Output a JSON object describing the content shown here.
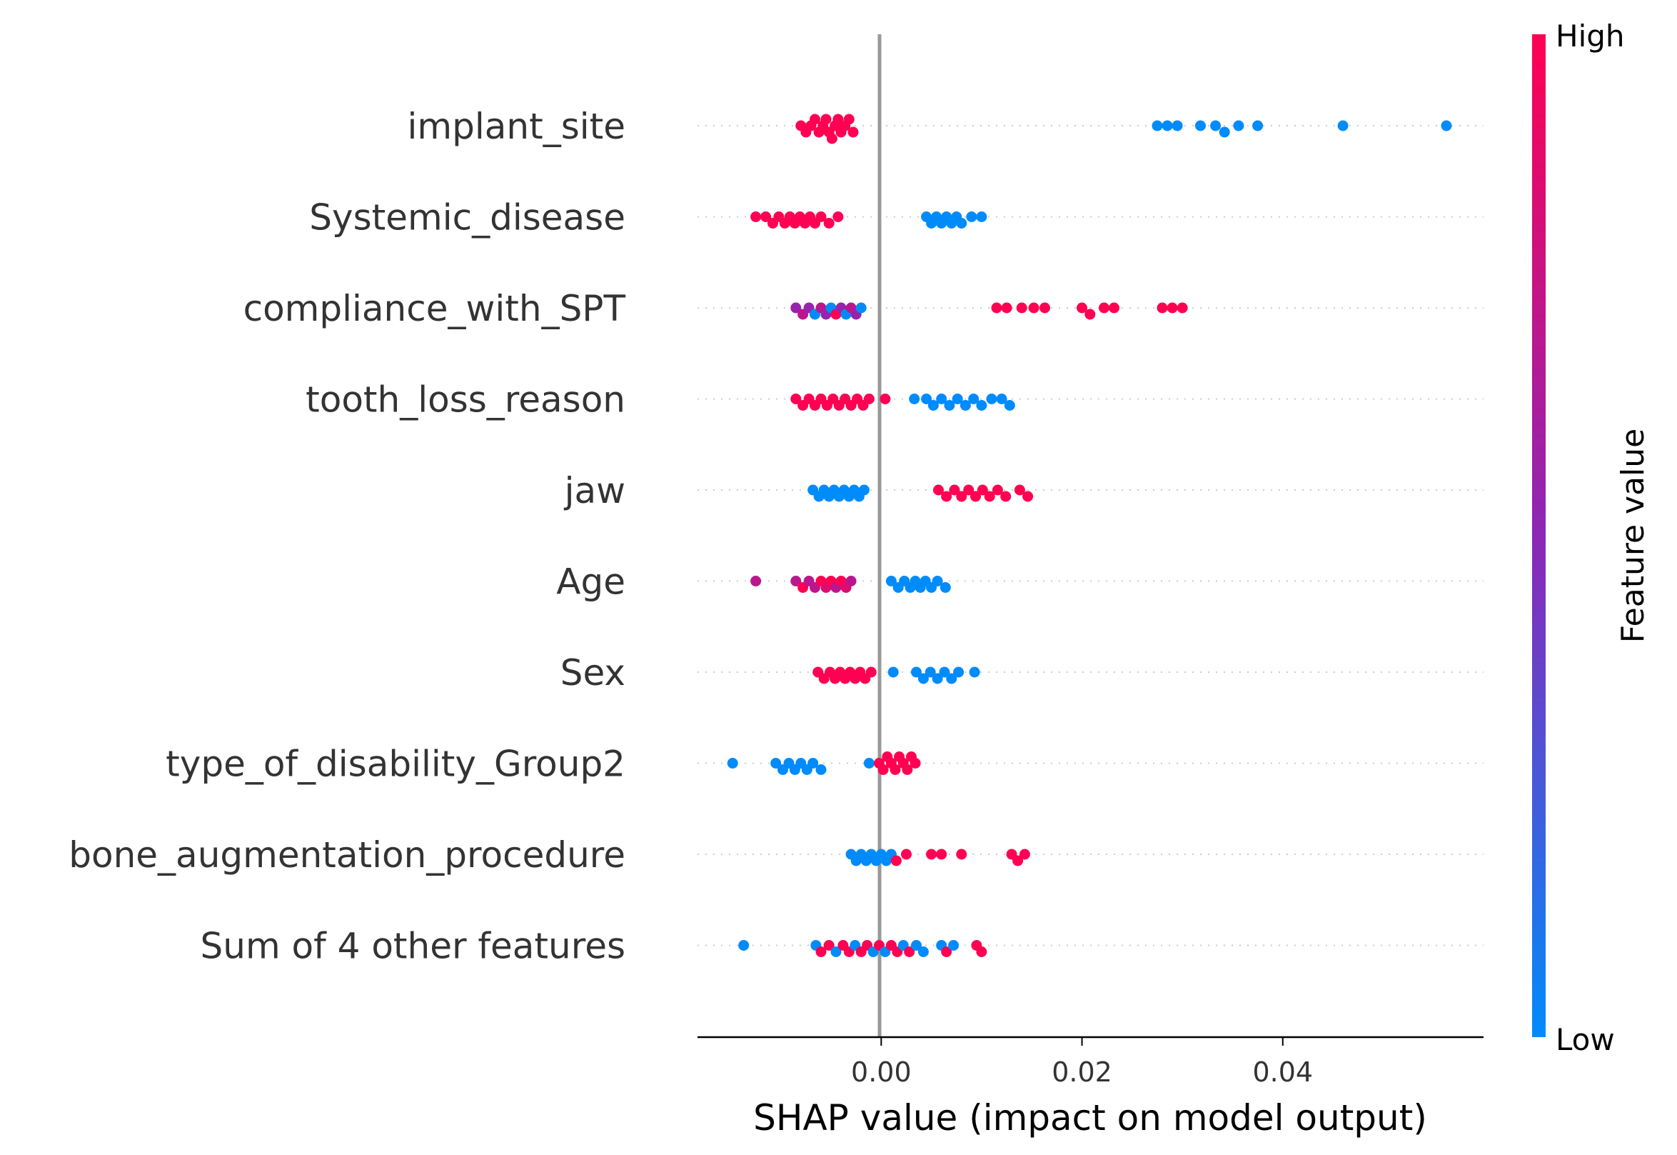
{
  "chart_data": {
    "type": "scatter",
    "xlabel": "SHAP value (impact on model output)",
    "x_ticks": [
      0.0,
      0.02,
      0.04
    ],
    "x_tick_labels": [
      "0.00",
      "0.02",
      "0.04"
    ],
    "xlim": [
      -0.0183,
      0.06
    ],
    "zero_line": true,
    "colorbar": {
      "title": "Feature value",
      "high_label": "High",
      "low_label": "Low",
      "high_color": "#ff0052",
      "mid_color": "#8c27b6",
      "low_color": "#008bfb"
    },
    "features": [
      {
        "name": "implant_site",
        "points": [
          {
            "x": -0.008,
            "v": 1
          },
          {
            "x": -0.0075,
            "v": 1
          },
          {
            "x": -0.007,
            "v": 1
          },
          {
            "x": -0.0066,
            "v": 1
          },
          {
            "x": -0.0062,
            "v": 1
          },
          {
            "x": -0.0058,
            "v": 1
          },
          {
            "x": -0.0055,
            "v": 1
          },
          {
            "x": -0.0052,
            "v": 1
          },
          {
            "x": -0.0049,
            "v": 1
          },
          {
            "x": -0.0046,
            "v": 1
          },
          {
            "x": -0.0043,
            "v": 1
          },
          {
            "x": -0.004,
            "v": 1
          },
          {
            "x": -0.0036,
            "v": 1
          },
          {
            "x": -0.0032,
            "v": 1
          },
          {
            "x": -0.0028,
            "v": 1
          },
          {
            "x": 0.0275,
            "v": 0
          },
          {
            "x": 0.0285,
            "v": 0
          },
          {
            "x": 0.0295,
            "v": 0
          },
          {
            "x": 0.0318,
            "v": 0
          },
          {
            "x": 0.0333,
            "v": 0
          },
          {
            "x": 0.0342,
            "v": 0
          },
          {
            "x": 0.0356,
            "v": 0
          },
          {
            "x": 0.0375,
            "v": 0
          },
          {
            "x": 0.046,
            "v": 0
          },
          {
            "x": 0.0563,
            "v": 0
          }
        ]
      },
      {
        "name": "Systemic_disease",
        "points": [
          {
            "x": -0.0125,
            "v": 1
          },
          {
            "x": -0.0115,
            "v": 1
          },
          {
            "x": -0.0108,
            "v": 1
          },
          {
            "x": -0.0102,
            "v": 1
          },
          {
            "x": -0.0096,
            "v": 1
          },
          {
            "x": -0.0091,
            "v": 1
          },
          {
            "x": -0.0086,
            "v": 1
          },
          {
            "x": -0.0081,
            "v": 1
          },
          {
            "x": -0.0076,
            "v": 1
          },
          {
            "x": -0.0071,
            "v": 1
          },
          {
            "x": -0.0066,
            "v": 1
          },
          {
            "x": -0.006,
            "v": 1
          },
          {
            "x": -0.0052,
            "v": 1
          },
          {
            "x": -0.0043,
            "v": 1
          },
          {
            "x": 0.0045,
            "v": 0
          },
          {
            "x": 0.005,
            "v": 0
          },
          {
            "x": 0.0055,
            "v": 0
          },
          {
            "x": 0.006,
            "v": 0
          },
          {
            "x": 0.0065,
            "v": 0
          },
          {
            "x": 0.007,
            "v": 0
          },
          {
            "x": 0.0075,
            "v": 0
          },
          {
            "x": 0.008,
            "v": 0
          },
          {
            "x": 0.009,
            "v": 0
          },
          {
            "x": 0.01,
            "v": 0
          }
        ]
      },
      {
        "name": "compliance_with_SPT",
        "points": [
          {
            "x": -0.0085,
            "v": 0.55
          },
          {
            "x": -0.0078,
            "v": 0.7
          },
          {
            "x": -0.0072,
            "v": 0.55
          },
          {
            "x": -0.0066,
            "v": 0.0
          },
          {
            "x": -0.006,
            "v": 0.7
          },
          {
            "x": -0.0055,
            "v": 0.55
          },
          {
            "x": -0.005,
            "v": 0.0
          },
          {
            "x": -0.0045,
            "v": 1.0
          },
          {
            "x": -0.004,
            "v": 0.55
          },
          {
            "x": -0.0035,
            "v": 0.0
          },
          {
            "x": -0.003,
            "v": 0.7
          },
          {
            "x": -0.0025,
            "v": 0.55
          },
          {
            "x": -0.002,
            "v": 0.0
          },
          {
            "x": 0.0115,
            "v": 1
          },
          {
            "x": 0.0125,
            "v": 1
          },
          {
            "x": 0.014,
            "v": 1
          },
          {
            "x": 0.0152,
            "v": 1
          },
          {
            "x": 0.0163,
            "v": 1
          },
          {
            "x": 0.02,
            "v": 1
          },
          {
            "x": 0.0208,
            "v": 1
          },
          {
            "x": 0.0222,
            "v": 1
          },
          {
            "x": 0.0232,
            "v": 1
          },
          {
            "x": 0.028,
            "v": 1
          },
          {
            "x": 0.029,
            "v": 1
          },
          {
            "x": 0.03,
            "v": 1
          }
        ]
      },
      {
        "name": "tooth_loss_reason",
        "points": [
          {
            "x": -0.0085,
            "v": 1
          },
          {
            "x": -0.0078,
            "v": 1
          },
          {
            "x": -0.0072,
            "v": 1
          },
          {
            "x": -0.0066,
            "v": 1
          },
          {
            "x": -0.006,
            "v": 1
          },
          {
            "x": -0.0054,
            "v": 1
          },
          {
            "x": -0.0048,
            "v": 1
          },
          {
            "x": -0.0042,
            "v": 1
          },
          {
            "x": -0.0036,
            "v": 1
          },
          {
            "x": -0.003,
            "v": 1
          },
          {
            "x": -0.0024,
            "v": 1
          },
          {
            "x": -0.0018,
            "v": 1
          },
          {
            "x": -0.0012,
            "v": 1
          },
          {
            "x": 0.0004,
            "v": 1
          },
          {
            "x": 0.0033,
            "v": 0
          },
          {
            "x": 0.0045,
            "v": 0
          },
          {
            "x": 0.0052,
            "v": 0
          },
          {
            "x": 0.006,
            "v": 0
          },
          {
            "x": 0.0068,
            "v": 0
          },
          {
            "x": 0.0076,
            "v": 0
          },
          {
            "x": 0.0084,
            "v": 0
          },
          {
            "x": 0.0092,
            "v": 0
          },
          {
            "x": 0.01,
            "v": 0
          },
          {
            "x": 0.011,
            "v": 0
          },
          {
            "x": 0.012,
            "v": 0
          },
          {
            "x": 0.0128,
            "v": 0
          }
        ]
      },
      {
        "name": "jaw",
        "points": [
          {
            "x": -0.0068,
            "v": 0
          },
          {
            "x": -0.0062,
            "v": 0
          },
          {
            "x": -0.0057,
            "v": 0
          },
          {
            "x": -0.0052,
            "v": 0
          },
          {
            "x": -0.0047,
            "v": 0
          },
          {
            "x": -0.0042,
            "v": 0
          },
          {
            "x": -0.0037,
            "v": 0
          },
          {
            "x": -0.0032,
            "v": 0
          },
          {
            "x": -0.0027,
            "v": 0
          },
          {
            "x": -0.0022,
            "v": 0
          },
          {
            "x": -0.0017,
            "v": 0
          },
          {
            "x": 0.0057,
            "v": 1
          },
          {
            "x": 0.0065,
            "v": 1
          },
          {
            "x": 0.0073,
            "v": 1
          },
          {
            "x": 0.008,
            "v": 1
          },
          {
            "x": 0.0087,
            "v": 1
          },
          {
            "x": 0.0094,
            "v": 1
          },
          {
            "x": 0.0101,
            "v": 1
          },
          {
            "x": 0.0108,
            "v": 1
          },
          {
            "x": 0.0116,
            "v": 1
          },
          {
            "x": 0.0124,
            "v": 1
          },
          {
            "x": 0.0138,
            "v": 1
          },
          {
            "x": 0.0146,
            "v": 1
          }
        ]
      },
      {
        "name": "Age",
        "points": [
          {
            "x": -0.0125,
            "v": 0.7
          },
          {
            "x": -0.0085,
            "v": 0.7
          },
          {
            "x": -0.0078,
            "v": 1.0
          },
          {
            "x": -0.0072,
            "v": 0.7
          },
          {
            "x": -0.0066,
            "v": 0.7
          },
          {
            "x": -0.006,
            "v": 1.0
          },
          {
            "x": -0.0055,
            "v": 0.85
          },
          {
            "x": -0.005,
            "v": 1.0
          },
          {
            "x": -0.0045,
            "v": 0.7
          },
          {
            "x": -0.004,
            "v": 1.0
          },
          {
            "x": -0.0035,
            "v": 0.85
          },
          {
            "x": -0.003,
            "v": 0.7
          },
          {
            "x": 0.001,
            "v": 0
          },
          {
            "x": 0.0017,
            "v": 0
          },
          {
            "x": 0.0023,
            "v": 0
          },
          {
            "x": 0.0029,
            "v": 0
          },
          {
            "x": 0.0034,
            "v": 0
          },
          {
            "x": 0.0039,
            "v": 0
          },
          {
            "x": 0.0044,
            "v": 0
          },
          {
            "x": 0.005,
            "v": 0
          },
          {
            "x": 0.0056,
            "v": 0
          },
          {
            "x": 0.0064,
            "v": 0
          }
        ]
      },
      {
        "name": "Sex",
        "points": [
          {
            "x": -0.0063,
            "v": 1
          },
          {
            "x": -0.0057,
            "v": 1
          },
          {
            "x": -0.0051,
            "v": 1
          },
          {
            "x": -0.0046,
            "v": 1
          },
          {
            "x": -0.0041,
            "v": 1
          },
          {
            "x": -0.0036,
            "v": 1
          },
          {
            "x": -0.0031,
            "v": 1
          },
          {
            "x": -0.0026,
            "v": 1
          },
          {
            "x": -0.0021,
            "v": 1
          },
          {
            "x": -0.0016,
            "v": 1
          },
          {
            "x": -0.001,
            "v": 1
          },
          {
            "x": 0.0012,
            "v": 0
          },
          {
            "x": 0.0035,
            "v": 0
          },
          {
            "x": 0.0042,
            "v": 0
          },
          {
            "x": 0.0049,
            "v": 0
          },
          {
            "x": 0.0056,
            "v": 0
          },
          {
            "x": 0.0063,
            "v": 0
          },
          {
            "x": 0.007,
            "v": 0
          },
          {
            "x": 0.0077,
            "v": 0
          },
          {
            "x": 0.0093,
            "v": 0
          }
        ]
      },
      {
        "name": "type_of_disability_Group2",
        "points": [
          {
            "x": -0.0148,
            "v": 0
          },
          {
            "x": -0.0105,
            "v": 0
          },
          {
            "x": -0.0098,
            "v": 0
          },
          {
            "x": -0.0092,
            "v": 0
          },
          {
            "x": -0.0086,
            "v": 0
          },
          {
            "x": -0.008,
            "v": 0
          },
          {
            "x": -0.0074,
            "v": 0
          },
          {
            "x": -0.0068,
            "v": 0
          },
          {
            "x": -0.006,
            "v": 0
          },
          {
            "x": -0.0012,
            "v": 0
          },
          {
            "x": -0.0002,
            "v": 1
          },
          {
            "x": 0.0002,
            "v": 1
          },
          {
            "x": 0.0006,
            "v": 1
          },
          {
            "x": 0.001,
            "v": 1
          },
          {
            "x": 0.0014,
            "v": 1
          },
          {
            "x": 0.0018,
            "v": 1
          },
          {
            "x": 0.0022,
            "v": 1
          },
          {
            "x": 0.0026,
            "v": 1
          },
          {
            "x": 0.003,
            "v": 1
          },
          {
            "x": 0.0034,
            "v": 1
          }
        ]
      },
      {
        "name": "bone_augmentation_procedure",
        "points": [
          {
            "x": -0.003,
            "v": 0
          },
          {
            "x": -0.0025,
            "v": 0
          },
          {
            "x": -0.002,
            "v": 0
          },
          {
            "x": -0.0015,
            "v": 0
          },
          {
            "x": -0.001,
            "v": 0
          },
          {
            "x": -0.0005,
            "v": 0
          },
          {
            "x": 0.0,
            "v": 0
          },
          {
            "x": 0.0005,
            "v": 0
          },
          {
            "x": 0.001,
            "v": 0
          },
          {
            "x": 0.0015,
            "v": 1
          },
          {
            "x": 0.0025,
            "v": 1
          },
          {
            "x": 0.005,
            "v": 1
          },
          {
            "x": 0.006,
            "v": 1
          },
          {
            "x": 0.008,
            "v": 1
          },
          {
            "x": 0.013,
            "v": 1
          },
          {
            "x": 0.0136,
            "v": 1
          },
          {
            "x": 0.0143,
            "v": 1
          }
        ]
      },
      {
        "name": "Sum of 4 other features",
        "points": [
          {
            "x": -0.0137,
            "v": 0
          },
          {
            "x": -0.0065,
            "v": 0
          },
          {
            "x": -0.006,
            "v": 1
          },
          {
            "x": -0.0052,
            "v": 1
          },
          {
            "x": -0.0045,
            "v": 0
          },
          {
            "x": -0.0038,
            "v": 1
          },
          {
            "x": -0.0032,
            "v": 1
          },
          {
            "x": -0.0026,
            "v": 0
          },
          {
            "x": -0.002,
            "v": 1
          },
          {
            "x": -0.0014,
            "v": 1
          },
          {
            "x": -0.0008,
            "v": 0
          },
          {
            "x": -0.0002,
            "v": 1
          },
          {
            "x": 0.0004,
            "v": 0
          },
          {
            "x": 0.001,
            "v": 1
          },
          {
            "x": 0.0016,
            "v": 1
          },
          {
            "x": 0.0022,
            "v": 0
          },
          {
            "x": 0.0028,
            "v": 1
          },
          {
            "x": 0.0035,
            "v": 0
          },
          {
            "x": 0.0042,
            "v": 0
          },
          {
            "x": 0.006,
            "v": 0
          },
          {
            "x": 0.0065,
            "v": 1
          },
          {
            "x": 0.0072,
            "v": 0
          },
          {
            "x": 0.0095,
            "v": 1
          },
          {
            "x": 0.01,
            "v": 1
          }
        ]
      }
    ]
  }
}
